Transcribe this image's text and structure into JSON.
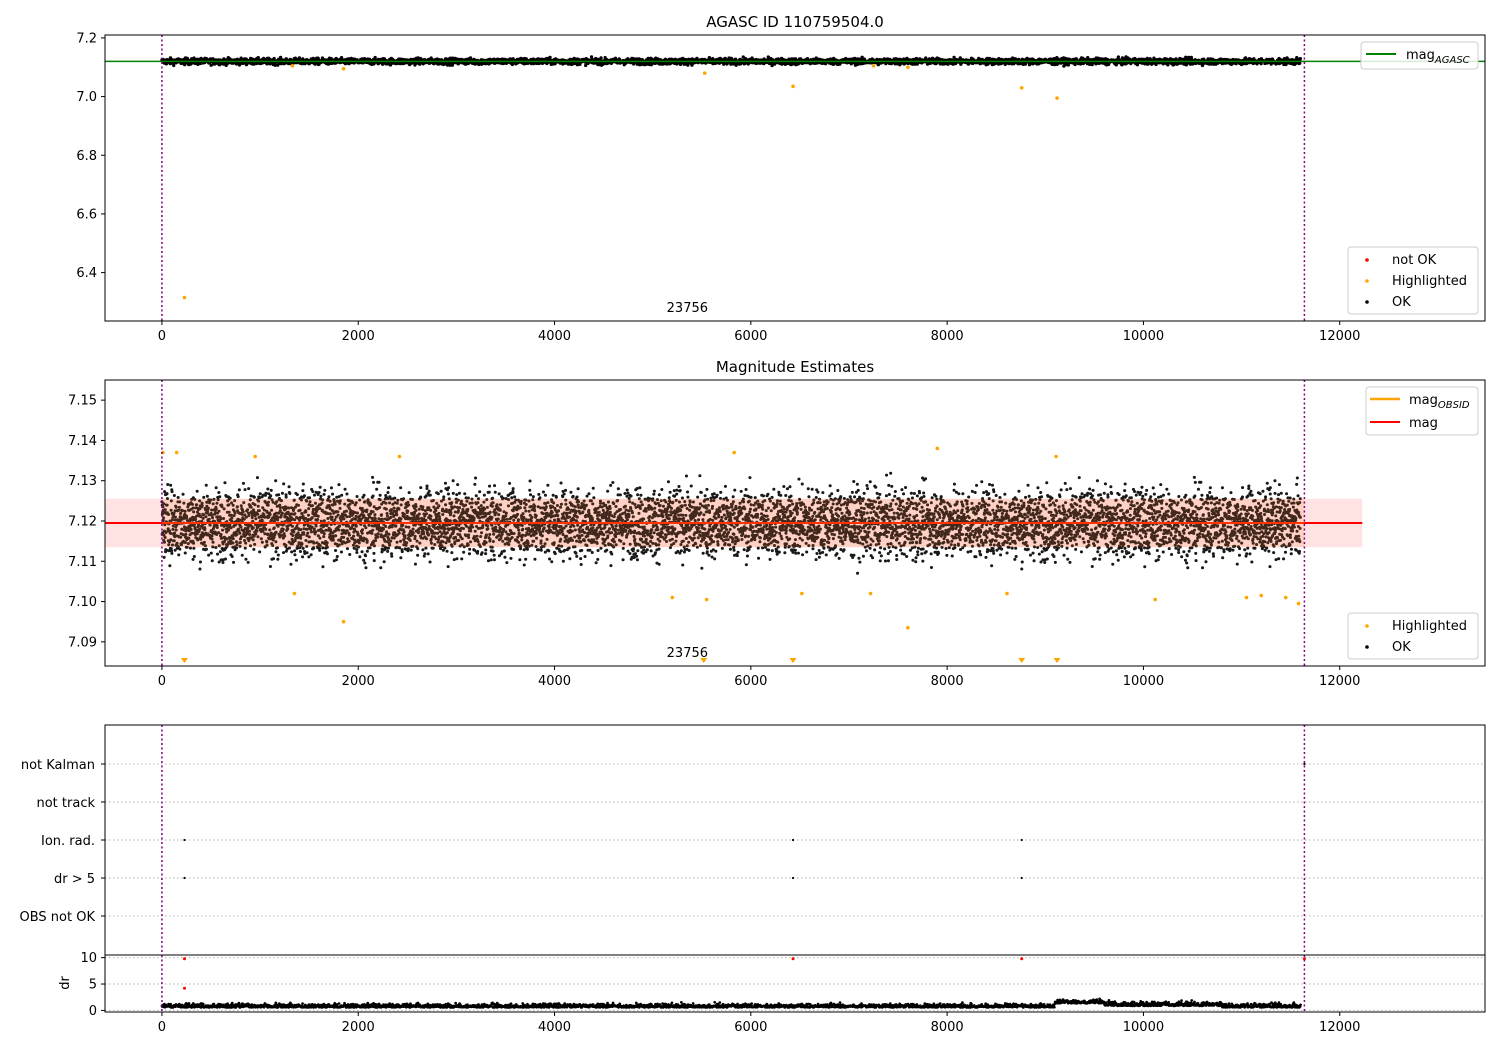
{
  "chart_data": [
    {
      "type": "scatter",
      "title": "AGASC ID 110759504.0",
      "xlabel": "",
      "ylabel": "",
      "xlim": [
        -580,
        13480
      ],
      "ylim": [
        6.235,
        7.21
      ],
      "xticks": [
        0,
        2000,
        4000,
        6000,
        8000,
        10000,
        12000
      ],
      "yticks": [
        6.4,
        6.6,
        6.8,
        7.0,
        7.2
      ],
      "ytick_labels": [
        "6.4",
        "6.6",
        "6.8",
        "7.0",
        "7.2"
      ],
      "obsid_boundaries": [
        0,
        11640
      ],
      "obsid_label": {
        "text": "23756",
        "x": 5550
      },
      "mag_agasc": 7.12,
      "ok_band": {
        "center": 7.12,
        "spread": 0.015
      },
      "highlighted": [
        [
          230,
          6.315
        ],
        [
          1850,
          7.095
        ],
        [
          5530,
          7.08
        ],
        [
          6430,
          7.035
        ],
        [
          8760,
          7.03
        ],
        [
          9120,
          6.995
        ],
        [
          1330,
          7.105
        ],
        [
          7250,
          7.105
        ],
        [
          7600,
          7.1
        ]
      ],
      "series": [
        {
          "name": "not OK",
          "color": "#ff0000"
        },
        {
          "name": "Highlighted",
          "color": "#ffa500"
        },
        {
          "name": "OK",
          "color": "#000000"
        }
      ],
      "line_legend": {
        "name": "mag",
        "subscript": "AGASC",
        "color": "#008000"
      }
    },
    {
      "type": "scatter",
      "title": "Magnitude Estimates",
      "xlabel": "",
      "ylabel": "",
      "xlim": [
        -580,
        13480
      ],
      "ylim": [
        7.084,
        7.155
      ],
      "xticks": [
        0,
        2000,
        4000,
        6000,
        8000,
        10000,
        12000
      ],
      "yticks": [
        7.09,
        7.1,
        7.11,
        7.12,
        7.13,
        7.14,
        7.15
      ],
      "ytick_labels": [
        "7.09",
        "7.10",
        "7.11",
        "7.12",
        "7.13",
        "7.14",
        "7.15"
      ],
      "obsid_boundaries": [
        0,
        11640
      ],
      "obsid_label": {
        "text": "23756",
        "x": 5550
      },
      "mag": 7.1195,
      "band": [
        7.1135,
        7.1255
      ],
      "band_x": [
        -580,
        12230
      ],
      "ok_band": {
        "center": 7.1195,
        "spread": 0.0075
      },
      "highlighted": [
        [
          10,
          7.137
        ],
        [
          150,
          7.137
        ],
        [
          950,
          7.136
        ],
        [
          2420,
          7.136
        ],
        [
          5830,
          7.137
        ],
        [
          7900,
          7.138
        ],
        [
          9110,
          7.136
        ],
        [
          1350,
          7.102
        ],
        [
          1850,
          7.095
        ],
        [
          5200,
          7.101
        ],
        [
          5550,
          7.1005
        ],
        [
          6520,
          7.102
        ],
        [
          7220,
          7.102
        ],
        [
          7600,
          7.0935
        ],
        [
          8610,
          7.102
        ],
        [
          10120,
          7.1005
        ],
        [
          11050,
          7.101
        ],
        [
          11200,
          7.1015
        ],
        [
          11450,
          7.101
        ],
        [
          11580,
          7.0995
        ]
      ],
      "below_range_markers": [
        230,
        5520,
        6430,
        8760,
        9120
      ],
      "series": [
        {
          "name": "Highlighted",
          "color": "#ffa500"
        },
        {
          "name": "OK",
          "color": "#000000"
        }
      ],
      "line_legend": [
        {
          "name": "mag",
          "subscript": "OBSID",
          "color": "#ffa500"
        },
        {
          "name": "mag",
          "subscript": "",
          "color": "#ff0000"
        }
      ]
    },
    {
      "type": "scatter",
      "title": "",
      "xlim": [
        -580,
        13480
      ],
      "categories": [
        "not Kalman",
        "not track",
        "Ion. rad.",
        "dr > 5",
        "OBS not OK"
      ],
      "flag_points": [
        {
          "category": "not Kalman",
          "x": [
            11640
          ]
        },
        {
          "category": "Ion. rad.",
          "x": [
            230,
            6430,
            8760
          ]
        },
        {
          "category": "dr > 5",
          "x": [
            230,
            6430,
            8760
          ]
        }
      ],
      "obsid_boundaries": [
        0,
        11640
      ]
    },
    {
      "type": "scatter",
      "title": "",
      "xlabel": "",
      "ylabel": "dr",
      "xlim": [
        -580,
        13480
      ],
      "ylim": [
        -0.3,
        10.5
      ],
      "xticks": [
        0,
        2000,
        4000,
        6000,
        8000,
        10000,
        12000
      ],
      "yticks": [
        0,
        5,
        10
      ],
      "ytick_labels": [
        "0",
        "5",
        "10"
      ],
      "obsid_boundaries": [
        0,
        11640
      ],
      "dr_baseline": 0.55,
      "dr_bump": {
        "x_range": [
          9100,
          9600
        ],
        "height": 1.3
      },
      "red_points": [
        [
          230,
          9.8
        ],
        [
          230,
          4.2
        ],
        [
          6430,
          9.8
        ],
        [
          8760,
          9.8
        ],
        [
          11640,
          9.8
        ]
      ]
    }
  ]
}
